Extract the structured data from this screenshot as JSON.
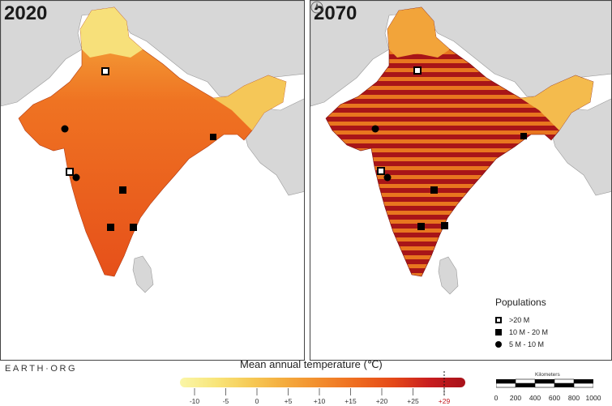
{
  "panels": [
    {
      "year": "2020"
    },
    {
      "year": "2070"
    }
  ],
  "brand": "EARTH·ORG",
  "legend": {
    "title": "Mean annual temperature (℃)",
    "ticks": [
      "-10",
      "-5",
      "0",
      "+5",
      "+10",
      "+15",
      "+20",
      "+25",
      "+29"
    ],
    "gradient_colors": [
      "#faf6a8",
      "#f8e57a",
      "#f6c955",
      "#f4a93c",
      "#f28a2c",
      "#ee6a1f",
      "#e44818",
      "#c81d1f",
      "#a8121a"
    ],
    "threshold_marker": "+29",
    "threshold_color": "#c0161c"
  },
  "populations": {
    "title": "Populations",
    "items": [
      {
        "symbol": "hollow-square",
        "label": ">20 M"
      },
      {
        "symbol": "filled-square",
        "label": "10 M - 20 M"
      },
      {
        "symbol": "circle",
        "label": "5 M - 10 M"
      }
    ]
  },
  "scale_bar": {
    "unit": "Kilometers",
    "ticks": [
      "0",
      "200",
      "400",
      "600",
      "800",
      "1000"
    ]
  },
  "north_arrow": {
    "label": "N"
  }
}
